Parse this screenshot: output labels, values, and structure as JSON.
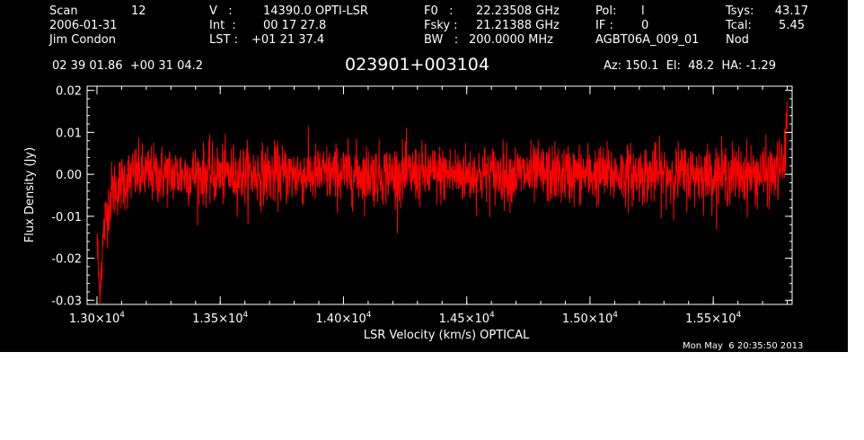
{
  "header": {
    "scan_label": "Scan",
    "scan_number": "12",
    "date": "2006-01-31",
    "observer": "Jim Condon",
    "velocity_label": "V   :",
    "velocity_value": "14390.0 OPTI-LSR",
    "int_label": "Int  :",
    "int_value": "00 17 27.8",
    "lst_label": "LST :",
    "lst_value": "+01 21 37.4",
    "f0_label": "F0   :",
    "f0_value": "22.23508 GHz",
    "fsky_label": "Fsky :",
    "fsky_value": "21.21388 GHz",
    "bw_label": "BW   :",
    "bw_value": "200.0000 MHz",
    "pol_label": "Pol:",
    "pol_value": "l",
    "if_label": "IF :",
    "if_value": "0",
    "project": "AGBT06A_009_01",
    "tsys_label": "Tsys:",
    "tsys_value": "43.17",
    "tcal_label": "Tcal:",
    "tcal_value": "5.45",
    "mode": "Nod",
    "coordinates": "02 39 01.86  +00 31 04.2",
    "source_name": "023901+003104",
    "az_el_ha": "Az: 150.1  El:  48.2  HA: -1.29"
  },
  "timestamp": "Mon May  6 20:35:50 2013",
  "colors": {
    "background": "#000000",
    "axes": "#ffffff",
    "series": "#ff0000"
  },
  "chart_data": {
    "type": "line",
    "title": "023901+003104",
    "xlabel": "LSR Velocity (km/s) OPTICAL",
    "ylabel": "Flux Density (Jy)",
    "xlim": [
      12960,
      15820
    ],
    "ylim": [
      -0.031,
      0.021
    ],
    "x_ticks": [
      {
        "value": 13000,
        "mantissa": "1.30",
        "exponent": "4"
      },
      {
        "value": 13500,
        "mantissa": "1.35",
        "exponent": "4"
      },
      {
        "value": 14000,
        "mantissa": "1.40",
        "exponent": "4"
      },
      {
        "value": 14500,
        "mantissa": "1.45",
        "exponent": "4"
      },
      {
        "value": 15000,
        "mantissa": "1.50",
        "exponent": "4"
      },
      {
        "value": 15500,
        "mantissa": "1.55",
        "exponent": "4"
      }
    ],
    "y_ticks": [
      {
        "value": 0.02,
        "label": "0.02"
      },
      {
        "value": 0.01,
        "label": "0.01"
      },
      {
        "value": 0.0,
        "label": "0.00"
      },
      {
        "value": -0.01,
        "label": "-0.01"
      },
      {
        "value": -0.02,
        "label": "-0.02"
      },
      {
        "value": -0.03,
        "label": "-0.03"
      }
    ],
    "grid": false,
    "legend": "none",
    "series": [
      {
        "values_approx": {
          "x": [
            13000,
            13010,
            13030,
            13060,
            13100,
            13150,
            13200,
            13300,
            13400,
            13500,
            13600,
            13700,
            13800,
            13900,
            14000,
            14100,
            14200,
            14300,
            14400,
            14500,
            14600,
            14700,
            14800,
            14900,
            15000,
            15100,
            15200,
            15300,
            15400,
            15500,
            15600,
            15700,
            15750,
            15790,
            15800
          ],
          "y": [
            -0.016,
            -0.028,
            -0.012,
            -0.004,
            -0.002,
            0.0,
            0.0,
            0.0,
            0.0,
            0.0,
            0.0,
            0.0,
            0.0,
            0.0,
            0.0,
            0.0,
            0.0,
            0.0,
            0.0,
            0.0,
            0.0,
            0.0,
            0.0,
            0.0,
            0.0,
            0.0,
            0.0,
            0.0,
            0.0,
            0.0,
            0.0,
            0.0,
            0.0,
            0.003,
            0.016
          ]
        },
        "noise_rms_approx": 0.0035
      }
    ]
  }
}
